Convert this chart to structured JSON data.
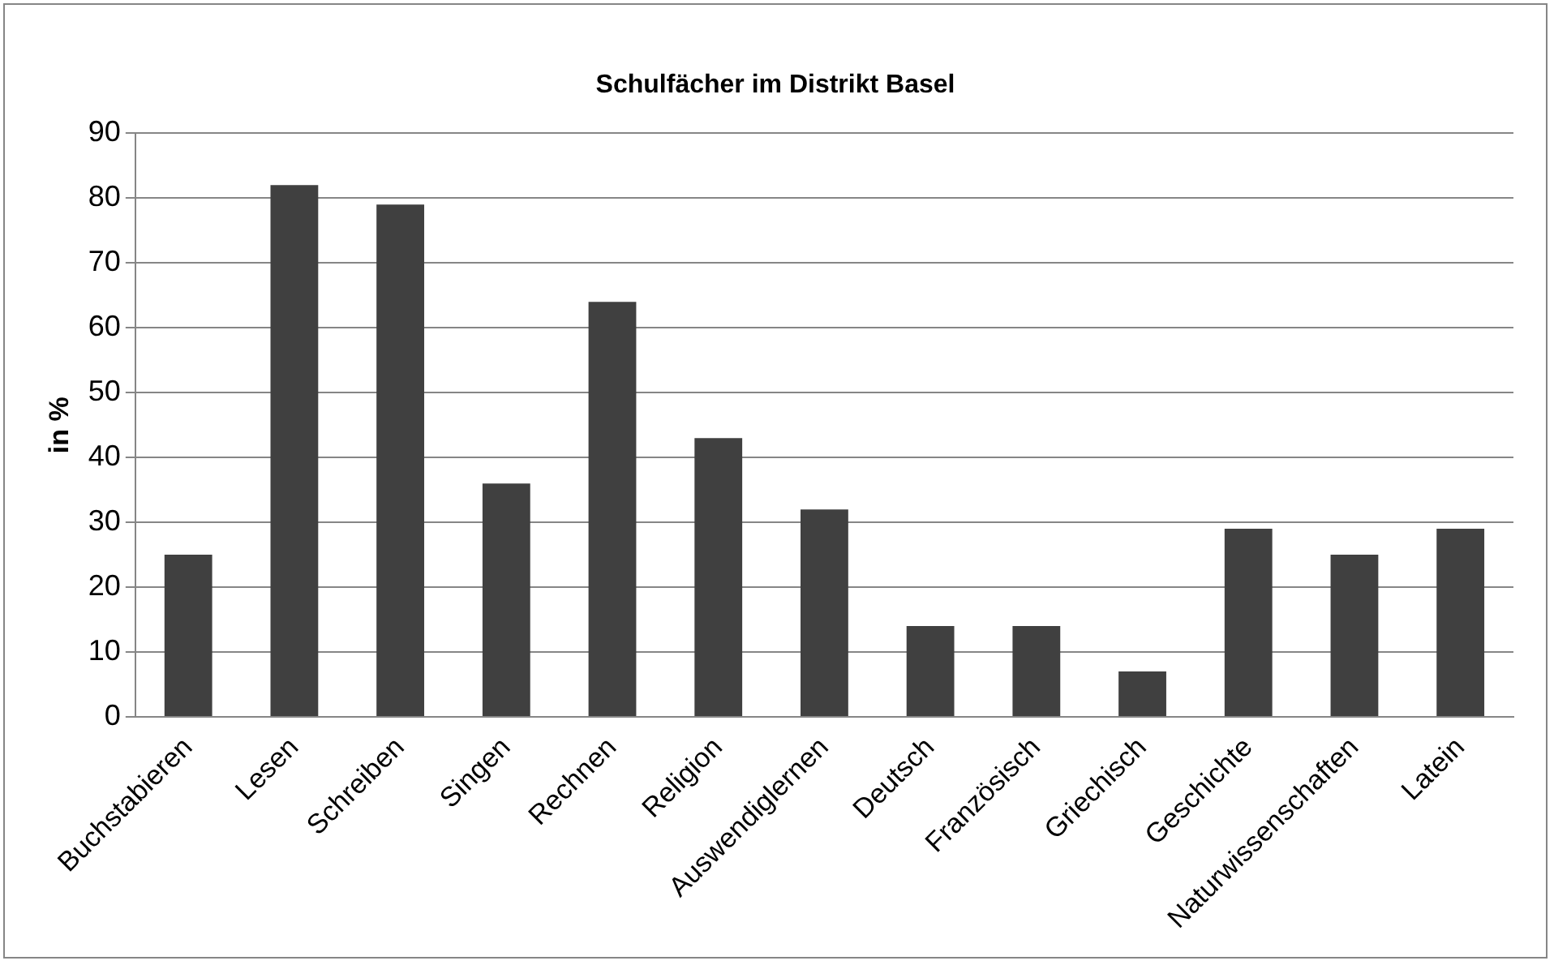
{
  "chart_data": {
    "type": "bar",
    "title": "Schulfächer im Distrikt Basel",
    "ylabel": "in %",
    "categories": [
      "Buchstabieren",
      "Lesen",
      "Schreiben",
      "Singen",
      "Rechnen",
      "Religion",
      "Auswendiglernen",
      "Deutsch",
      "Französisch",
      "Griechisch",
      "Geschichte",
      "Naturwissenschaften",
      "Latein"
    ],
    "values": [
      25,
      82,
      79,
      36,
      64,
      43,
      32,
      14,
      14,
      7,
      29,
      25,
      29
    ],
    "color": "#404040",
    "ylim": [
      0,
      90
    ],
    "yticks": [
      0,
      10,
      20,
      30,
      40,
      50,
      60,
      70,
      80,
      90
    ],
    "grid": "y",
    "legend": false
  }
}
